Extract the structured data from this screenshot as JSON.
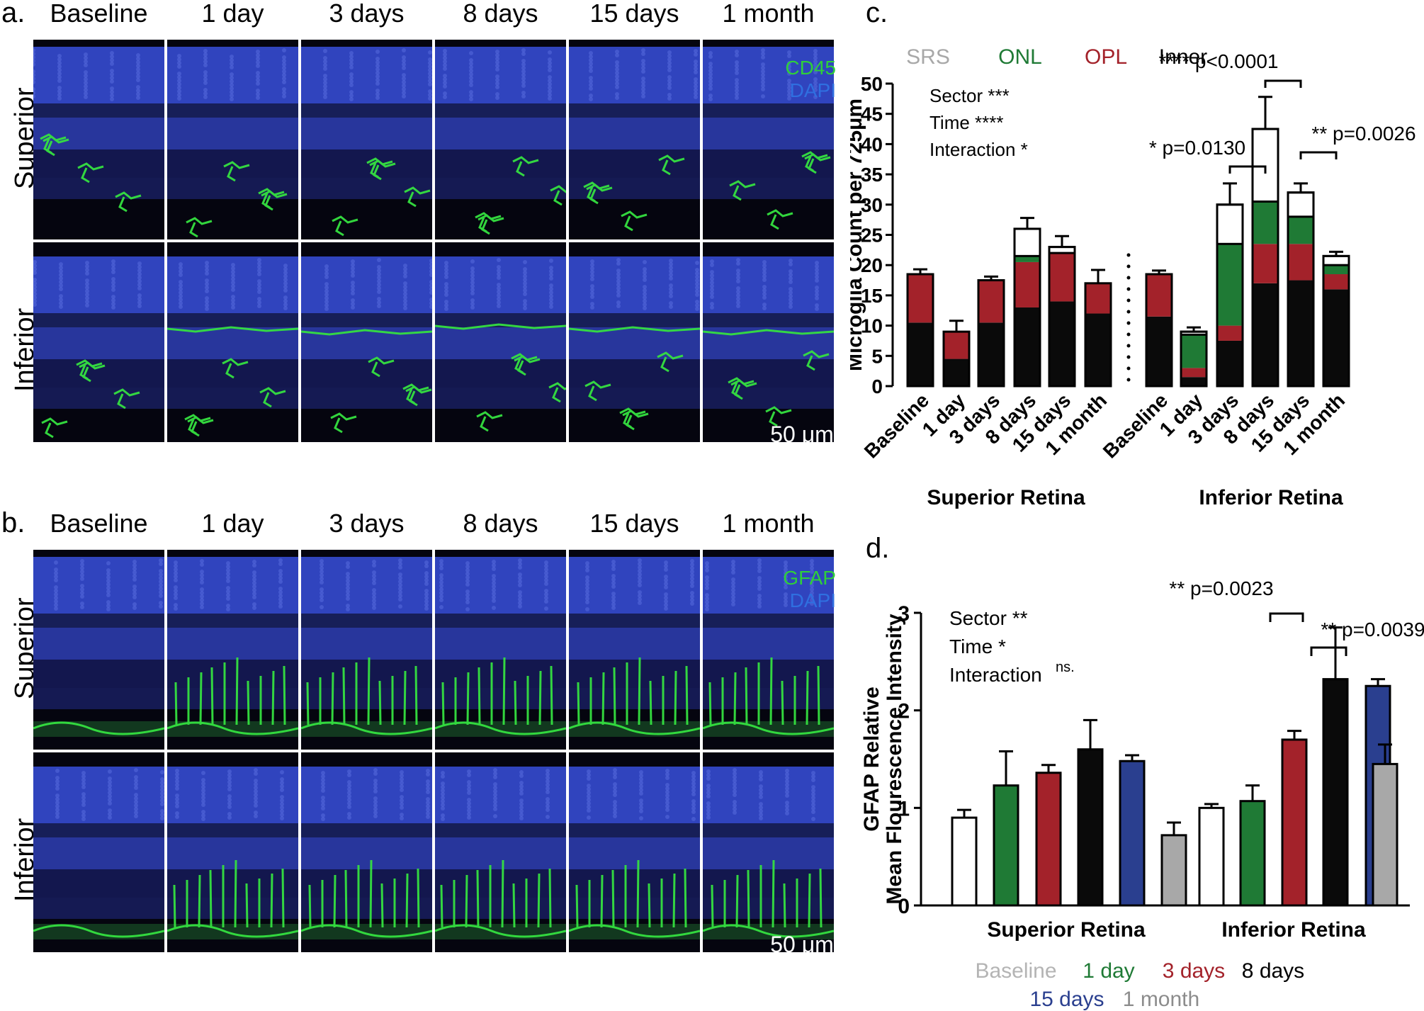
{
  "panel_a": {
    "label": "a.",
    "columns": [
      "Baseline",
      "1 day",
      "3 days",
      "8 days",
      "15 days",
      "1 month"
    ],
    "rows": [
      "Superior",
      "Inferior"
    ],
    "stain": {
      "marker": "CD45",
      "marker_color": "#2fcf3a",
      "dapi": "DAPI",
      "dapi_color": "#2f6fe0"
    },
    "scalebar": "50 μm"
  },
  "panel_b": {
    "label": "b.",
    "columns": [
      "Baseline",
      "1 day",
      "3 days",
      "8 days",
      "15 days",
      "1 month"
    ],
    "rows": [
      "Superior",
      "Inferior"
    ],
    "stain": {
      "marker": "GFAP",
      "marker_color": "#2fcf3a",
      "dapi": "DAPI",
      "dapi_color": "#2f6fe0"
    },
    "scalebar": "50 μm"
  },
  "panel_c": {
    "label": "c.",
    "legend": [
      {
        "name": "SRS",
        "color": "#a8a8a8"
      },
      {
        "name": "ONL",
        "color": "#1f7a35"
      },
      {
        "name": "OPL",
        "color": "#a3222a"
      },
      {
        "name": "Inner",
        "color": "#000000"
      }
    ],
    "stats": [
      "Sector ***",
      "Time ****",
      "Interaction *"
    ],
    "annotations": [
      "**** p<0.0001",
      "* p=0.0130",
      "** p=0.0026"
    ],
    "group_labels": [
      "Superior Retina",
      "Inferior Retina"
    ]
  },
  "panel_d": {
    "label": "d.",
    "stats": [
      "Sector **",
      "Time *",
      "Interaction"
    ],
    "stats_sup": "ns.",
    "annotations": [
      "** p=0.0023",
      "** p=0.0039"
    ],
    "legend": [
      {
        "name": "Baseline",
        "color": "#b4b4b4"
      },
      {
        "name": "1 day",
        "color": "#1f7a35"
      },
      {
        "name": "3 days",
        "color": "#a3222a"
      },
      {
        "name": "8 days",
        "color": "#000000"
      },
      {
        "name": "15 days",
        "color": "#2a3f8f"
      },
      {
        "name": "1 month",
        "color": "#8c8c8c"
      }
    ]
  },
  "chart_data": [
    {
      "type": "bar",
      "stacked": true,
      "ylabel": "Microglia Count per 725μm",
      "ylim": [
        0,
        50
      ],
      "yticks": [
        0,
        5,
        10,
        15,
        20,
        25,
        30,
        35,
        40,
        45,
        50
      ],
      "groups": [
        "Superior Retina",
        "Inferior Retina"
      ],
      "categories": [
        "Baseline",
        "1 day",
        "3 days",
        "8 days",
        "15 days",
        "1 month"
      ],
      "series_colors": {
        "Inner": "#0a0a0a",
        "OPL": "#a3222a",
        "ONL": "#1f7a35",
        "SRS": "#ffffff"
      },
      "bars": [
        {
          "group": "Superior Retina",
          "category": "Baseline",
          "Inner": 10.5,
          "OPL": 8.0,
          "ONL": 0,
          "SRS": 0,
          "total": 18.5,
          "err": 0.8
        },
        {
          "group": "Superior Retina",
          "category": "1 day",
          "Inner": 4.5,
          "OPL": 4.5,
          "ONL": 0,
          "SRS": 0,
          "total": 9.0,
          "err": 1.8
        },
        {
          "group": "Superior Retina",
          "category": "3 days",
          "Inner": 10.5,
          "OPL": 7.0,
          "ONL": 0,
          "SRS": 0,
          "total": 17.5,
          "err": 0.6
        },
        {
          "group": "Superior Retina",
          "category": "8 days",
          "Inner": 13.0,
          "OPL": 7.5,
          "ONL": 1.0,
          "SRS": 4.5,
          "total": 26.0,
          "err": 1.8
        },
        {
          "group": "Superior Retina",
          "category": "15 days",
          "Inner": 14.0,
          "OPL": 8.0,
          "ONL": 0,
          "SRS": 1.0,
          "total": 23.0,
          "err": 1.8
        },
        {
          "group": "Superior Retina",
          "category": "1 month",
          "Inner": 12.0,
          "OPL": 5.0,
          "ONL": 0,
          "SRS": 0,
          "total": 17.0,
          "err": 2.2
        },
        {
          "group": "Inferior Retina",
          "category": "Baseline",
          "Inner": 11.5,
          "OPL": 7.0,
          "ONL": 0,
          "SRS": 0,
          "total": 18.5,
          "err": 0.6
        },
        {
          "group": "Inferior Retina",
          "category": "1 day",
          "Inner": 1.5,
          "OPL": 1.5,
          "ONL": 5.5,
          "SRS": 0.5,
          "total": 9.0,
          "err": 0.7
        },
        {
          "group": "Inferior Retina",
          "category": "3 days",
          "Inner": 7.5,
          "OPL": 2.5,
          "ONL": 13.5,
          "SRS": 6.5,
          "total": 30.0,
          "err": 3.5
        },
        {
          "group": "Inferior Retina",
          "category": "8 days",
          "Inner": 17.0,
          "OPL": 6.5,
          "ONL": 7.0,
          "SRS": 12.0,
          "total": 42.5,
          "err": 5.3
        },
        {
          "group": "Inferior Retina",
          "category": "15 days",
          "Inner": 17.5,
          "OPL": 6.0,
          "ONL": 4.5,
          "SRS": 4.0,
          "total": 32.0,
          "err": 1.5
        },
        {
          "group": "Inferior Retina",
          "category": "1 month",
          "Inner": 16.0,
          "OPL": 2.5,
          "ONL": 1.5,
          "SRS": 1.5,
          "total": 21.5,
          "err": 0.7
        }
      ]
    },
    {
      "type": "bar",
      "ylabel": "GFAP Relative Mean Flourescence Intensity",
      "ylim": [
        0,
        3
      ],
      "yticks": [
        0,
        1,
        2,
        3
      ],
      "categories": [
        "Superior Retina",
        "Inferior Retina"
      ],
      "series": [
        {
          "name": "Baseline",
          "values": [
            0.9,
            1.0
          ],
          "errors": [
            0.08,
            0.04
          ],
          "color": "#ffffff"
        },
        {
          "name": "1 day",
          "values": [
            1.23,
            1.07
          ],
          "errors": [
            0.35,
            0.16
          ],
          "color": "#1f7a35"
        },
        {
          "name": "3 days",
          "values": [
            1.36,
            1.7
          ],
          "errors": [
            0.08,
            0.09
          ],
          "color": "#a3222a"
        },
        {
          "name": "8 days",
          "values": [
            1.6,
            2.32
          ],
          "errors": [
            0.3,
            0.53
          ],
          "color": "#0a0a0a"
        },
        {
          "name": "15 days",
          "values": [
            1.48,
            2.25
          ],
          "errors": [
            0.06,
            0.07
          ],
          "color": "#2a3f8f"
        },
        {
          "name": "1 month",
          "values": [
            0.72,
            1.45
          ],
          "errors": [
            0.13,
            0.2
          ],
          "color": "#a8a8a8"
        }
      ]
    }
  ]
}
